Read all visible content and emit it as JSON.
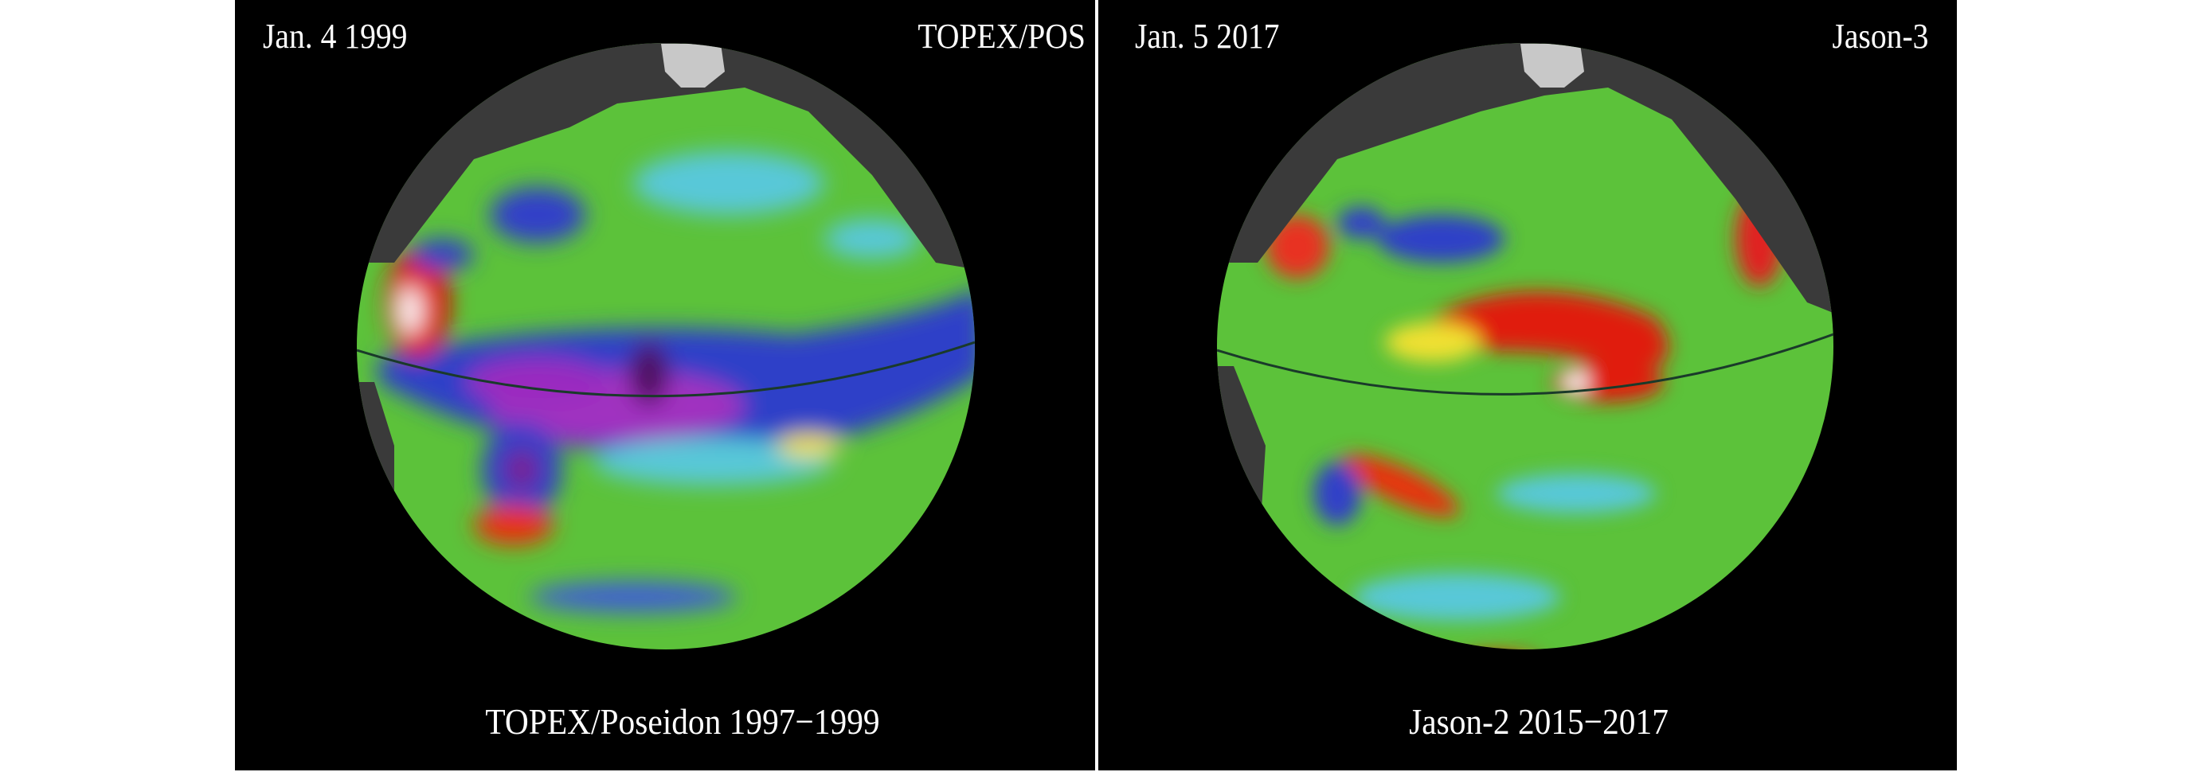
{
  "panels": [
    {
      "date": "Jan. 4 1999",
      "satellite": "TOPEX/POS",
      "caption": "TOPEX/Poseidon 1997−1999"
    },
    {
      "date": "Jan. 5 2017",
      "satellite": "Jason-3",
      "caption": "Jason-2 2015−2017"
    }
  ],
  "colors": {
    "background": "#000000",
    "ocean_base": "#5cc23a",
    "land": "#3a3a3a",
    "ice": "#c8c8c8"
  }
}
